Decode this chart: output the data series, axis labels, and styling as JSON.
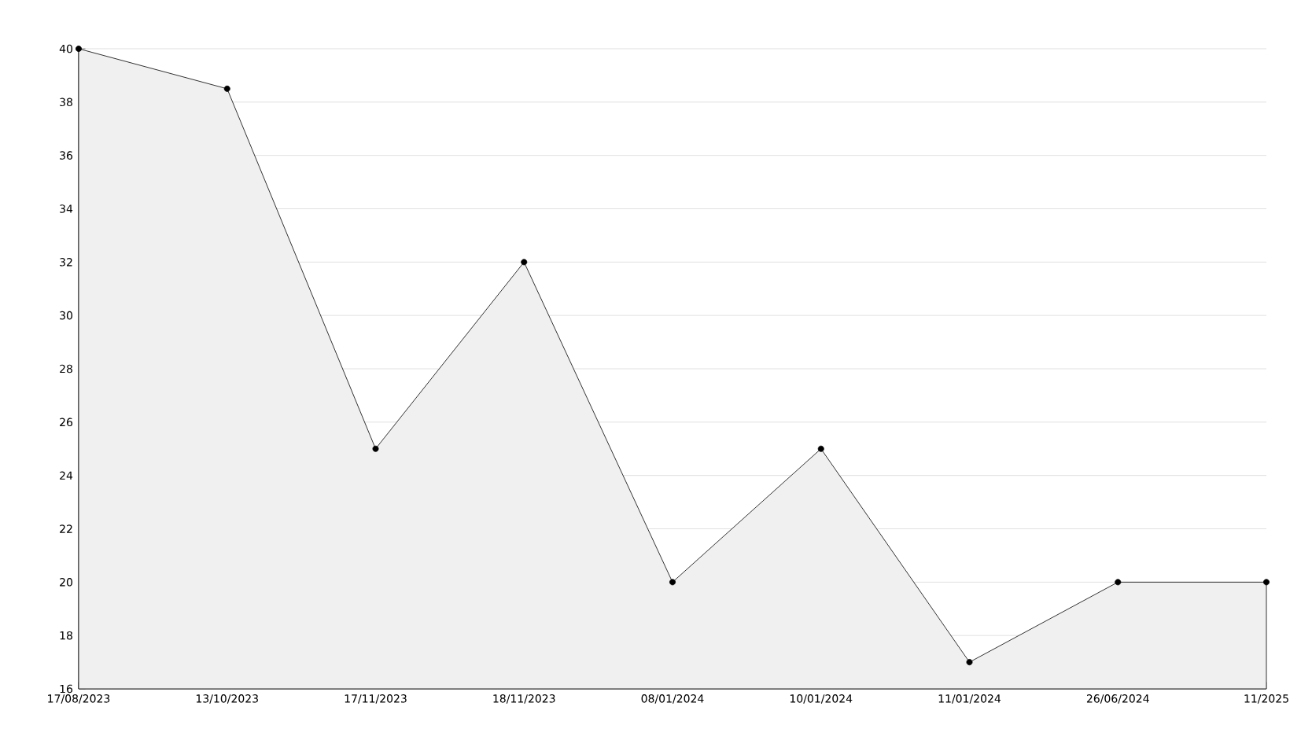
{
  "chart_data": {
    "type": "area",
    "categories": [
      "17/08/2023",
      "13/10/2023",
      "17/11/2023",
      "18/11/2023",
      "08/01/2024",
      "10/01/2024",
      "11/01/2024",
      "26/06/2024",
      "11/2025"
    ],
    "values": [
      40,
      38.5,
      25,
      32,
      20,
      25,
      17,
      20,
      20
    ],
    "color": "#000000",
    "ylim": [
      16,
      40
    ],
    "yticks": [
      16,
      18,
      20,
      22,
      24,
      26,
      28,
      30,
      32,
      34,
      36,
      38,
      40
    ],
    "grid": "y",
    "marker": "circle",
    "line_style": "solid"
  }
}
